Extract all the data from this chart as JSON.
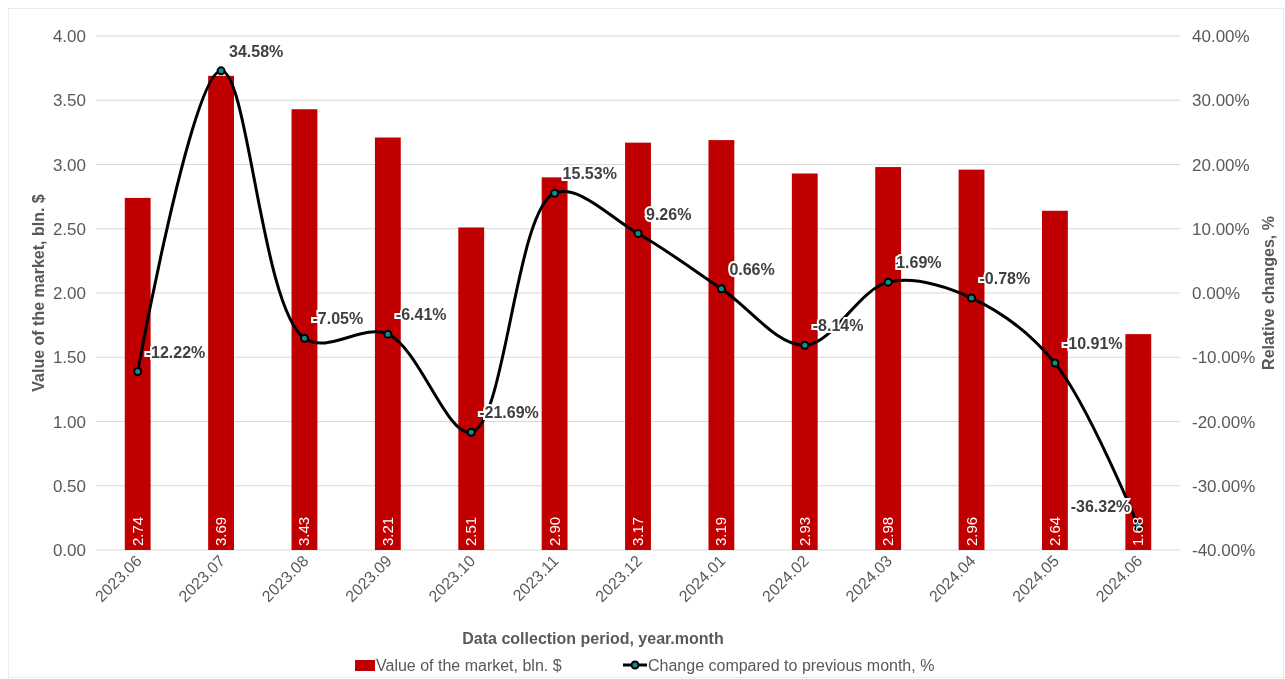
{
  "chart_data": {
    "type": "bar",
    "xlabel": "Data collection period, year.month",
    "ylabel": "Value of the market, bln. $",
    "y2label": "Relative changes, %",
    "categories": [
      "2023.06",
      "2023.07",
      "2023.08",
      "2023.09",
      "2023.10",
      "2023.11",
      "2023.12",
      "2024.01",
      "2024.02",
      "2024.03",
      "2024.04",
      "2024.05",
      "2024.06"
    ],
    "series": [
      {
        "name": "Value of the market, bln. $",
        "color": "#c00000",
        "values": [
          2.74,
          3.69,
          3.43,
          3.21,
          2.51,
          2.9,
          3.17,
          3.19,
          2.93,
          2.98,
          2.96,
          2.64,
          1.68
        ],
        "value_labels": [
          "2.74",
          "3.69",
          "3.43",
          "3.21",
          "2.51",
          "2.90",
          "3.17",
          "3.19",
          "2.93",
          "2.98",
          "2.96",
          "2.64",
          "1.68"
        ]
      },
      {
        "name": "Change compared to previous month, %",
        "type": "line",
        "axis": "y2",
        "color": "#000000",
        "values": [
          -12.22,
          34.58,
          -7.05,
          -6.41,
          -21.69,
          15.53,
          9.26,
          0.66,
          -8.14,
          1.69,
          -0.78,
          -10.91,
          -36.32
        ],
        "value_labels": [
          "-12.22%",
          "34.58%",
          "-7.05%",
          "-6.41%",
          "-21.69%",
          "15.53%",
          "9.26%",
          "0.66%",
          "-8.14%",
          "1.69%",
          "-0.78%",
          "-10.91%",
          "-36.32%"
        ]
      }
    ],
    "ylim": [
      0,
      4
    ],
    "yticks": [
      {
        "value": 0,
        "label": "0.00"
      },
      {
        "value": 0.5,
        "label": "0.50"
      },
      {
        "value": 1,
        "label": "1.00"
      },
      {
        "value": 1.5,
        "label": "1.50"
      },
      {
        "value": 2,
        "label": "2.00"
      },
      {
        "value": 2.5,
        "label": "2.50"
      },
      {
        "value": 3,
        "label": "3.00"
      },
      {
        "value": 3.5,
        "label": "3.50"
      },
      {
        "value": 4,
        "label": "4.00"
      }
    ],
    "y2lim": [
      -40,
      40
    ],
    "y2ticks": [
      {
        "value": -40,
        "label": "-40.00%"
      },
      {
        "value": -30,
        "label": "-30.00%"
      },
      {
        "value": -20,
        "label": "-20.00%"
      },
      {
        "value": -10,
        "label": "-10.00%"
      },
      {
        "value": 0,
        "label": "0.00%"
      },
      {
        "value": 10,
        "label": "10.00%"
      },
      {
        "value": 20,
        "label": "20.00%"
      },
      {
        "value": 30,
        "label": "30.00%"
      },
      {
        "value": 40,
        "label": "40.00%"
      }
    ],
    "grid": "y",
    "legend": "bottom",
    "marker": "circle"
  }
}
